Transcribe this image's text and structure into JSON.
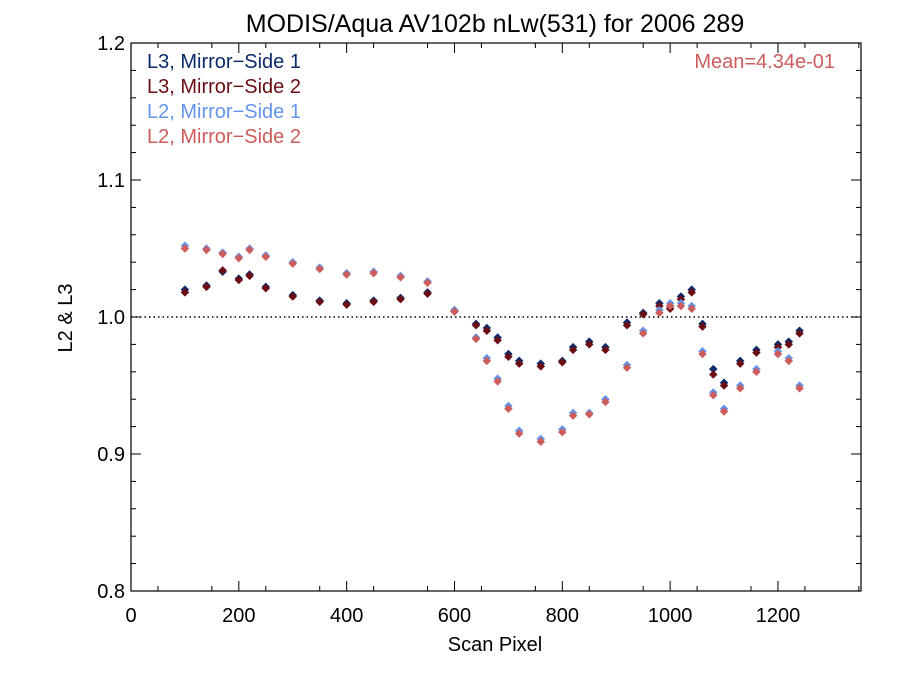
{
  "chart_data": {
    "type": "scatter",
    "title": "MODIS/Aqua AV102b nLw(531) for 2006 289",
    "xlabel": "Scan Pixel",
    "ylabel": "L2 & L3",
    "xlim": [
      0,
      1354
    ],
    "ylim": [
      0.8,
      1.2
    ],
    "x_ticks": [
      0,
      200,
      400,
      600,
      800,
      1000,
      1200
    ],
    "x_tick_labels": [
      "0",
      "200",
      "400",
      "600",
      "800",
      "1000",
      "1200"
    ],
    "y_ticks": [
      0.8,
      0.9,
      1.0,
      1.1,
      1.2
    ],
    "y_tick_labels": [
      "0.8",
      "0.9",
      "1.0",
      "1.1",
      "1.2"
    ],
    "reference_line": 1.0,
    "annotation": "Mean=4.34e-01",
    "annotation_color": "#cd5c5c",
    "legend_position": "top-left",
    "series": [
      {
        "name": "L3, Mirror−Side 1",
        "color": "#0a2a6b",
        "x": [
          100,
          140,
          170,
          200,
          220,
          250,
          300,
          350,
          400,
          450,
          500,
          550,
          600,
          640,
          660,
          680,
          700,
          720,
          760,
          800,
          820,
          850,
          880,
          920,
          950,
          980,
          1000,
          1020,
          1040,
          1060,
          1080,
          1100,
          1130,
          1160,
          1200,
          1220,
          1240
        ],
        "values": [
          1.02,
          1.023,
          1.033,
          1.028,
          1.031,
          1.022,
          1.016,
          1.012,
          1.01,
          1.012,
          1.014,
          1.018,
          1.005,
          0.995,
          0.992,
          0.985,
          0.973,
          0.968,
          0.966,
          0.968,
          0.978,
          0.982,
          0.978,
          0.996,
          1.003,
          1.01,
          1.008,
          1.015,
          1.02,
          0.995,
          0.962,
          0.952,
          0.968,
          0.976,
          0.98,
          0.982,
          0.99
        ]
      },
      {
        "name": "L3, Mirror−Side 2",
        "color": "#6b0e14",
        "x": [
          100,
          140,
          170,
          200,
          220,
          250,
          300,
          350,
          400,
          450,
          500,
          550,
          600,
          640,
          660,
          680,
          700,
          720,
          760,
          800,
          820,
          850,
          880,
          920,
          950,
          980,
          1000,
          1020,
          1040,
          1060,
          1080,
          1100,
          1130,
          1160,
          1200,
          1220,
          1240
        ],
        "values": [
          1.018,
          1.022,
          1.034,
          1.027,
          1.03,
          1.021,
          1.015,
          1.011,
          1.009,
          1.011,
          1.013,
          1.017,
          1.004,
          0.994,
          0.99,
          0.983,
          0.971,
          0.966,
          0.964,
          0.967,
          0.976,
          0.98,
          0.976,
          0.994,
          1.002,
          1.008,
          1.006,
          1.013,
          1.018,
          0.993,
          0.958,
          0.95,
          0.966,
          0.974,
          0.978,
          0.98,
          0.988
        ]
      },
      {
        "name": "L2, Mirror−Side 1",
        "color": "#6495ed",
        "x": [
          100,
          140,
          170,
          200,
          220,
          250,
          300,
          350,
          400,
          450,
          500,
          550,
          600,
          640,
          660,
          680,
          700,
          720,
          760,
          800,
          820,
          850,
          880,
          920,
          950,
          980,
          1000,
          1020,
          1040,
          1060,
          1080,
          1100,
          1130,
          1160,
          1200,
          1220,
          1240
        ],
        "values": [
          1.052,
          1.05,
          1.047,
          1.044,
          1.05,
          1.045,
          1.04,
          1.036,
          1.032,
          1.033,
          1.03,
          1.026,
          1.005,
          0.985,
          0.97,
          0.955,
          0.935,
          0.917,
          0.911,
          0.918,
          0.93,
          0.93,
          0.94,
          0.965,
          0.99,
          1.005,
          1.01,
          1.01,
          1.008,
          0.975,
          0.945,
          0.933,
          0.95,
          0.962,
          0.975,
          0.97,
          0.95
        ]
      },
      {
        "name": "L2, Mirror−Side 2",
        "color": "#cd5c5c",
        "x": [
          100,
          140,
          170,
          200,
          220,
          250,
          300,
          350,
          400,
          450,
          500,
          550,
          600,
          640,
          660,
          680,
          700,
          720,
          760,
          800,
          820,
          850,
          880,
          920,
          950,
          980,
          1000,
          1020,
          1040,
          1060,
          1080,
          1100,
          1130,
          1160,
          1200,
          1220,
          1240
        ],
        "values": [
          1.05,
          1.049,
          1.046,
          1.043,
          1.049,
          1.044,
          1.039,
          1.035,
          1.031,
          1.032,
          1.029,
          1.025,
          1.004,
          0.984,
          0.968,
          0.953,
          0.933,
          0.915,
          0.909,
          0.916,
          0.928,
          0.929,
          0.938,
          0.963,
          0.988,
          1.003,
          1.008,
          1.008,
          1.006,
          0.973,
          0.943,
          0.931,
          0.948,
          0.96,
          0.973,
          0.968,
          0.948
        ]
      }
    ]
  }
}
